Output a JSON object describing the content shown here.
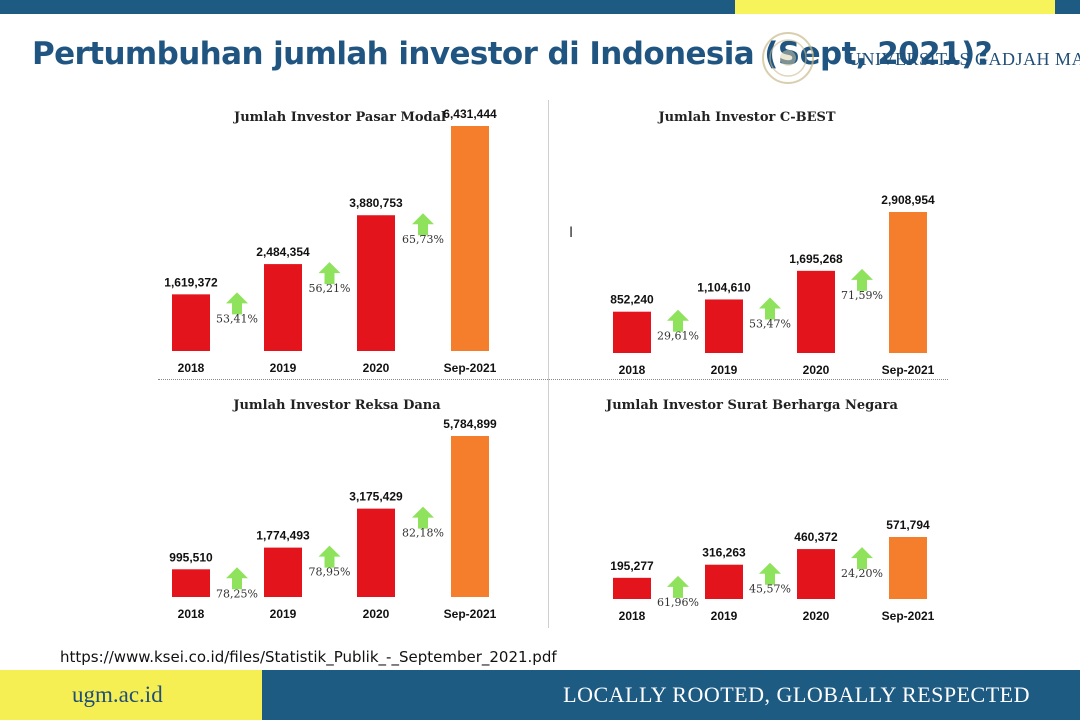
{
  "page": {
    "title": "Pertumbuhan jumlah investor di Indonesia (Sept, 2021)?",
    "brand_text": "UNIVERSITAS GADJAH MADA",
    "source": "https://www.ksei.co.id/files/Statistik_Publik_-_September_2021.pdf",
    "footer_left": "ugm.ac.id",
    "footer_right": "LOCALLY ROOTED, GLOBALLY RESPECTED"
  },
  "colors": {
    "bar_red": "#e4141d",
    "bar_orange": "#f47e2c",
    "arrow_green": "#8fe35c",
    "title_blue": "#1f5580",
    "band_blue": "#1d5b83",
    "band_yellow": "#f6ef54"
  },
  "chart_data": [
    {
      "type": "bar",
      "title": "Jumlah Investor Pasar Modal",
      "categories": [
        "2018",
        "2019",
        "2020",
        "Sep-2021"
      ],
      "values": [
        1619372,
        2484354,
        3880753,
        6431444
      ],
      "value_labels": [
        "1,619,372",
        "2,484,354",
        "3,880,753",
        "6,431,444"
      ],
      "growth_labels": [
        "53,41%",
        "56,21%",
        "65,73%"
      ],
      "highlight_last": true
    },
    {
      "type": "bar",
      "title": "Jumlah Investor C-BEST",
      "categories": [
        "2018",
        "2019",
        "2020",
        "Sep-2021"
      ],
      "values": [
        852240,
        1104610,
        1695268,
        2908954
      ],
      "value_labels": [
        "852,240",
        "1,104,610",
        "1,695,268",
        "2,908,954"
      ],
      "growth_labels": [
        "29,61%",
        "53,47%",
        "71,59%"
      ],
      "highlight_last": true
    },
    {
      "type": "bar",
      "title": "Jumlah Investor Reksa Dana",
      "categories": [
        "2018",
        "2019",
        "2020",
        "Sep-2021"
      ],
      "values": [
        995510,
        1774493,
        3175429,
        5784899
      ],
      "value_labels": [
        "995,510",
        "1,774,493",
        "3,175,429",
        "5,784,899"
      ],
      "growth_labels": [
        "78,25%",
        "78,95%",
        "82,18%"
      ],
      "highlight_last": true
    },
    {
      "type": "bar",
      "title": "Jumlah Investor Surat Berharga Negara",
      "categories": [
        "2018",
        "2019",
        "2020",
        "Sep-2021"
      ],
      "values": [
        195277,
        316263,
        460372,
        571794
      ],
      "value_labels": [
        "195,277",
        "316,263",
        "460,372",
        "571,794"
      ],
      "growth_labels": [
        "61,96%",
        "45,57%",
        "24,20%"
      ],
      "highlight_last": true
    }
  ]
}
